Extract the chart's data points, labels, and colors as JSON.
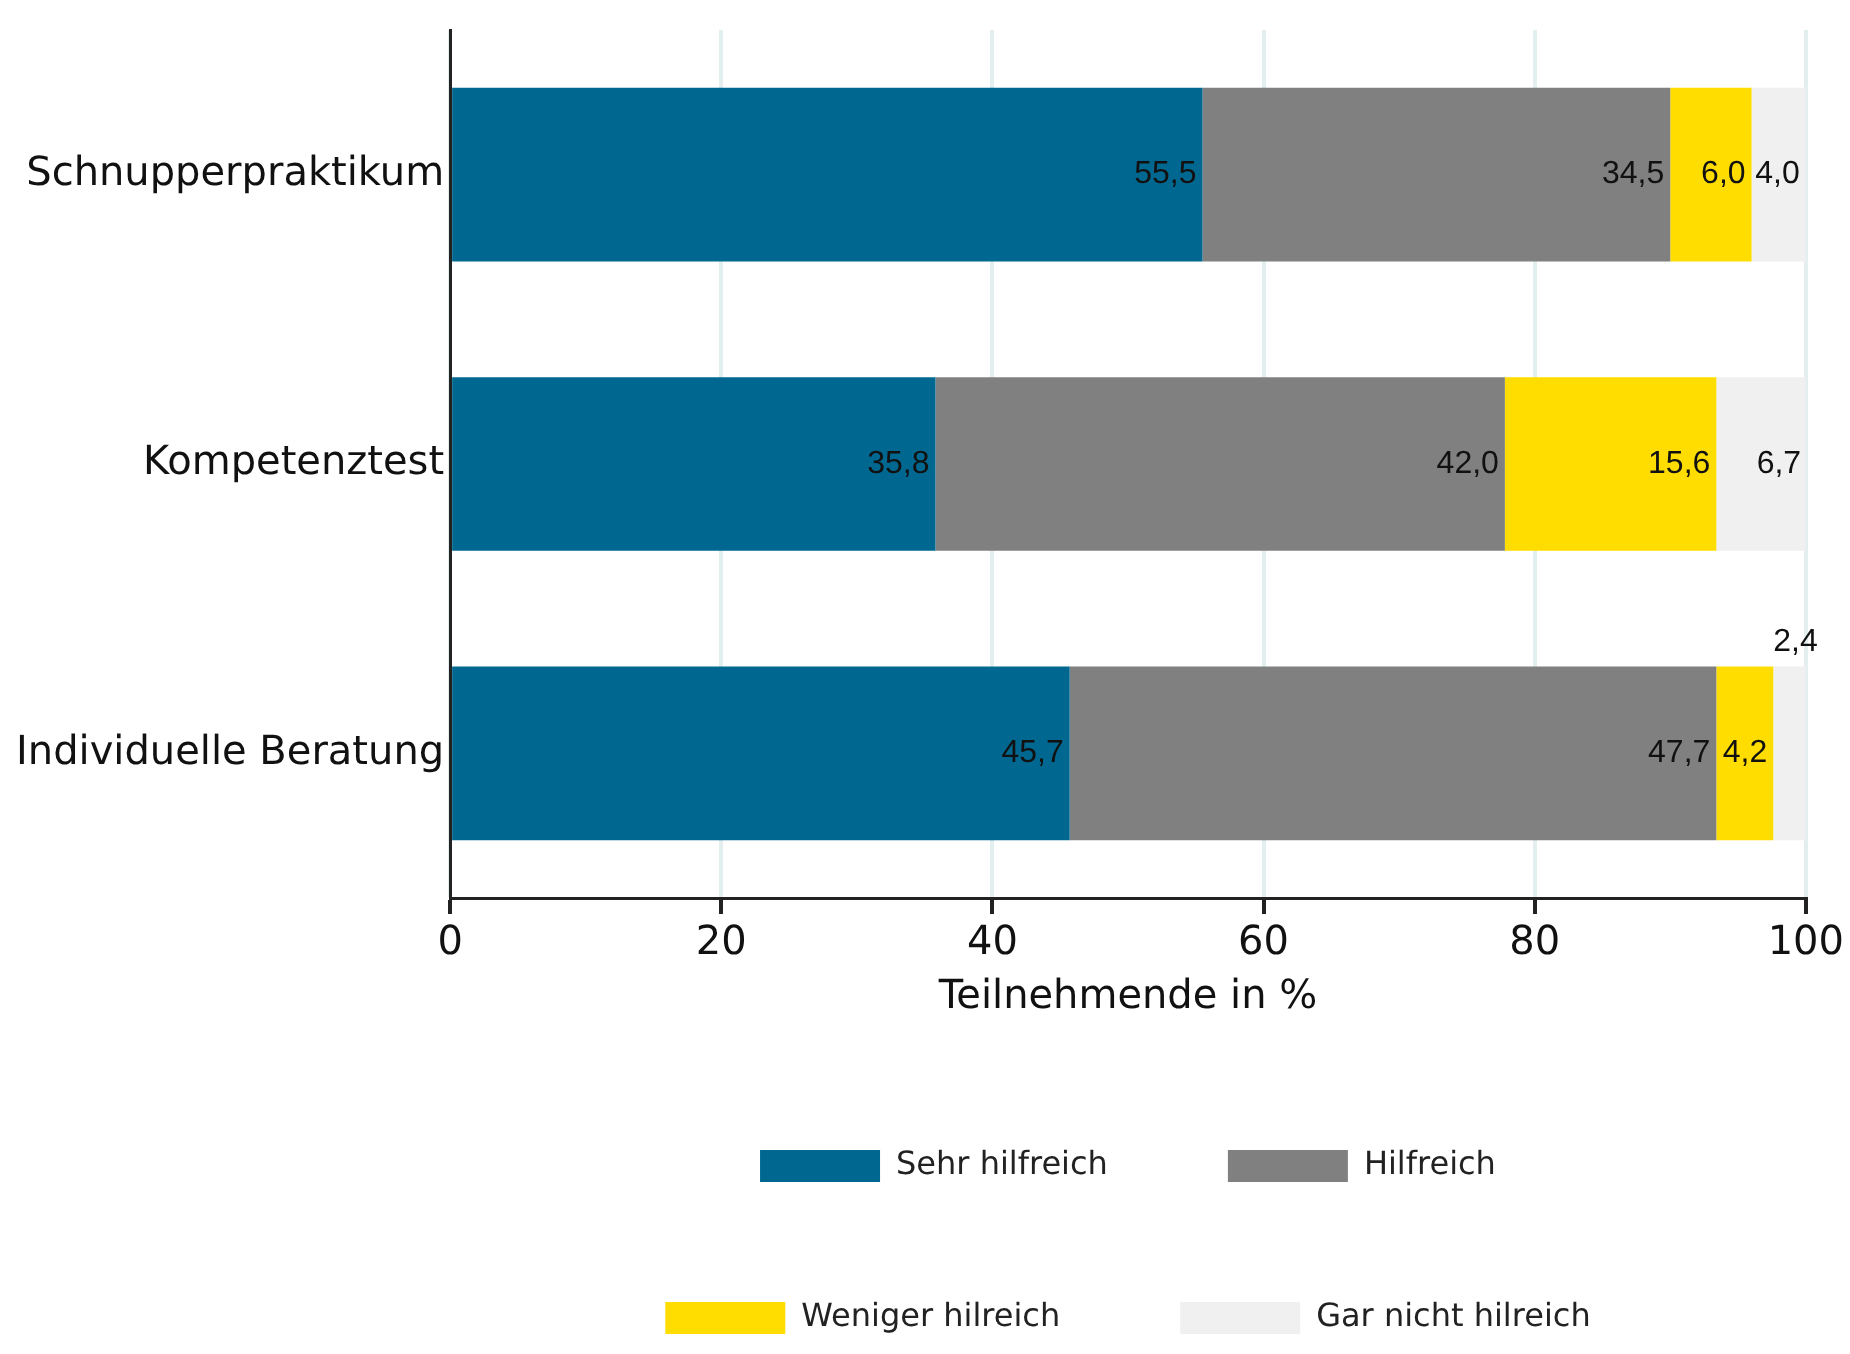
{
  "chart_data": {
    "type": "bar",
    "orientation": "horizontal",
    "stacked": true,
    "xlabel": "Teilnehmende in %",
    "categories": [
      "Schnupperpraktikum",
      "Kompetenztest",
      "Individuelle Beratung"
    ],
    "series": [
      {
        "name": "Sehr hilfreich",
        "color": "#006890",
        "values": [
          55.5,
          35.8,
          45.7
        ],
        "value_labels": [
          "55,5",
          "35,8",
          "45,7"
        ]
      },
      {
        "name": "Hilfreich",
        "color": "#808080",
        "values": [
          34.5,
          42.0,
          47.7
        ],
        "value_labels": [
          "34,5",
          "42,0",
          "47,7"
        ]
      },
      {
        "name": "Weniger hilreich",
        "color": "#ffdd00",
        "values": [
          6.0,
          15.6,
          4.2
        ],
        "value_labels": [
          "6,0",
          "15,6",
          "4,2"
        ]
      },
      {
        "name": "Gar nicht hilreich",
        "color": "#f0f0f0",
        "values": [
          4.0,
          6.7,
          2.4
        ],
        "value_labels": [
          "4,0",
          "6,7",
          "2,4"
        ]
      }
    ],
    "xlim": [
      0,
      100
    ],
    "xticks": [
      0,
      20,
      40,
      60,
      80,
      100
    ],
    "grid": "x",
    "legend": "bottom"
  }
}
